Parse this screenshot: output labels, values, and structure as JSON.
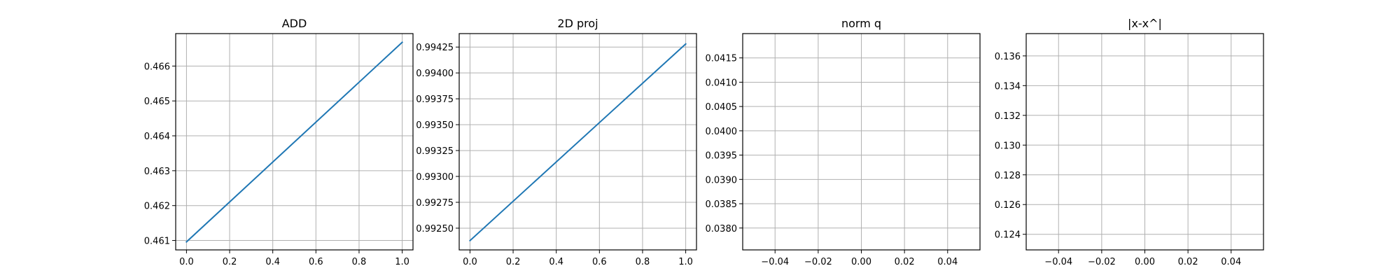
{
  "figure": {
    "background": "#ffffff",
    "line_color": "#1f77b4",
    "grid_color": "#b0b0b0",
    "spine_color": "#000000"
  },
  "chart_data": [
    {
      "type": "line",
      "title": "ADD",
      "xlabel": "",
      "ylabel": "",
      "grid": true,
      "xlim": [
        -0.05,
        1.05
      ],
      "ylim": [
        0.46073,
        0.46693
      ],
      "xticks": [
        0.0,
        0.2,
        0.4,
        0.6,
        0.8,
        1.0
      ],
      "xtick_labels": [
        "0.0",
        "0.2",
        "0.4",
        "0.6",
        "0.8",
        "1.0"
      ],
      "yticks": [
        0.461,
        0.462,
        0.463,
        0.464,
        0.465,
        0.466
      ],
      "ytick_labels": [
        "0.461",
        "0.462",
        "0.463",
        "0.464",
        "0.465",
        "0.466"
      ],
      "series": [
        {
          "x": [
            0,
            1
          ],
          "y": [
            0.46096,
            0.46668
          ]
        }
      ]
    },
    {
      "type": "line",
      "title": "2D proj",
      "xlabel": "",
      "ylabel": "",
      "grid": true,
      "xlim": [
        -0.05,
        1.05
      ],
      "ylim": [
        0.99229,
        0.99438
      ],
      "xticks": [
        0.0,
        0.2,
        0.4,
        0.6,
        0.8,
        1.0
      ],
      "xtick_labels": [
        "0.0",
        "0.2",
        "0.4",
        "0.6",
        "0.8",
        "1.0"
      ],
      "yticks": [
        0.9925,
        0.99275,
        0.993,
        0.99325,
        0.9935,
        0.99375,
        0.994,
        0.99425
      ],
      "ytick_labels": [
        "0.99250",
        "0.99275",
        "0.99300",
        "0.99325",
        "0.99350",
        "0.99375",
        "0.99400",
        "0.99425"
      ],
      "series": [
        {
          "x": [
            0,
            1
          ],
          "y": [
            0.99238,
            0.99428
          ]
        }
      ]
    },
    {
      "type": "line",
      "title": "norm q",
      "xlabel": "",
      "ylabel": "",
      "grid": true,
      "xlim": [
        -0.055,
        0.055
      ],
      "ylim": [
        0.03755,
        0.042
      ],
      "xticks": [
        -0.04,
        -0.02,
        0.0,
        0.02,
        0.04
      ],
      "xtick_labels": [
        "−0.04",
        "−0.02",
        "0.00",
        "0.02",
        "0.04"
      ],
      "yticks": [
        0.038,
        0.0385,
        0.039,
        0.0395,
        0.04,
        0.0405,
        0.041,
        0.0415
      ],
      "ytick_labels": [
        "0.0380",
        "0.0385",
        "0.0390",
        "0.0395",
        "0.0400",
        "0.0405",
        "0.0410",
        "0.0415"
      ],
      "series": [
        {
          "x": [],
          "y": []
        }
      ]
    },
    {
      "type": "line",
      "title": "|x-x^|",
      "xlabel": "",
      "ylabel": "",
      "grid": true,
      "xlim": [
        -0.055,
        0.055
      ],
      "ylim": [
        0.12295,
        0.1375
      ],
      "xticks": [
        -0.04,
        -0.02,
        0.0,
        0.02,
        0.04
      ],
      "xtick_labels": [
        "−0.04",
        "−0.02",
        "0.00",
        "0.02",
        "0.04"
      ],
      "yticks": [
        0.124,
        0.126,
        0.128,
        0.13,
        0.132,
        0.134,
        0.136
      ],
      "ytick_labels": [
        "0.124",
        "0.126",
        "0.128",
        "0.130",
        "0.132",
        "0.134",
        "0.136"
      ],
      "series": [
        {
          "x": [],
          "y": []
        }
      ]
    }
  ]
}
